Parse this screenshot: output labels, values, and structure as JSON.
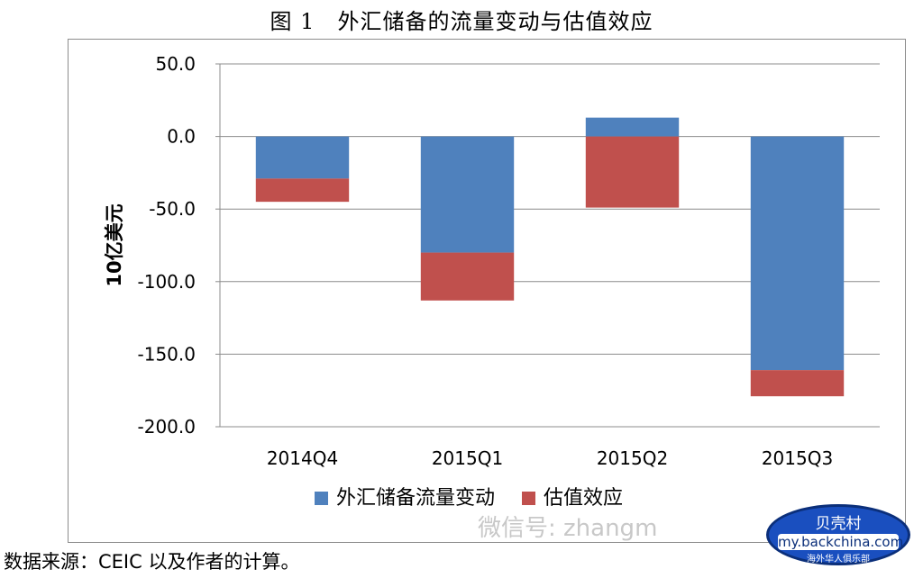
{
  "caption": "图 1　外汇储备的流量变动与估值效应",
  "source": "数据来源：CEIC 以及作者的计算。",
  "watermark": "微信号: zhangm",
  "badge": {
    "line1": "贝壳村",
    "line2": "my.backchina.com",
    "line3": "海外华人俱乐部"
  },
  "chart_data": {
    "type": "bar",
    "stacked": true,
    "title": "",
    "xlabel": "",
    "ylabel": "10亿美元",
    "ylim": [
      -200,
      50
    ],
    "yticks": [
      50,
      0,
      -50,
      -100,
      -150,
      -200
    ],
    "ytick_labels": [
      "50.0",
      "0.0",
      "-50.0",
      "-100.0",
      "-150.0",
      "-200.0"
    ],
    "grid": true,
    "legend_position": "bottom",
    "categories": [
      "2014Q4",
      "2015Q1",
      "2015Q2",
      "2015Q3"
    ],
    "series": [
      {
        "name": "外汇储备流量变动",
        "color": "#4f81bd",
        "values": [
          -29,
          -80,
          13,
          -161
        ]
      },
      {
        "name": "估值效应",
        "color": "#c0504d",
        "values": [
          -16,
          -33,
          -49,
          -18
        ]
      }
    ]
  }
}
